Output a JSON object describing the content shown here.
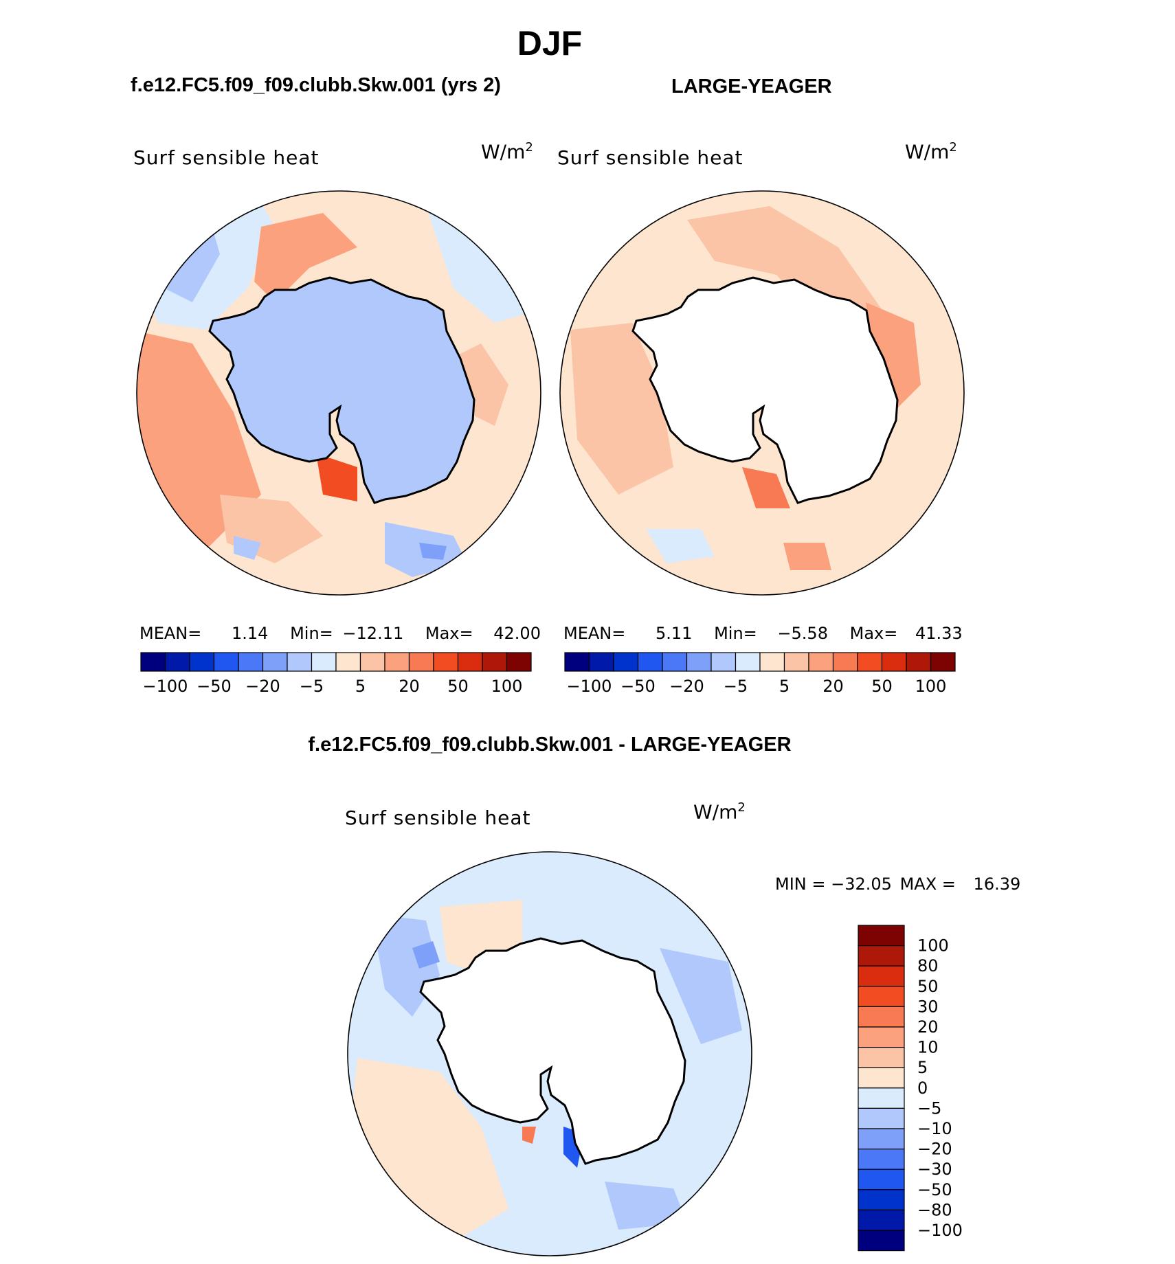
{
  "season_title": "DJF",
  "panels": {
    "left": {
      "case_title": "f.e12.FC5.f09_f09.clubb.Skw.001 (yrs 2)",
      "variable_label": "Surf sensible heat",
      "units_base": "W/m",
      "units_exp": "2",
      "stats": {
        "mean_label": "MEAN=",
        "mean": "1.14",
        "min_label": "Min=",
        "min": "−12.11",
        "max_label": "Max=",
        "max": "42.00"
      }
    },
    "right": {
      "case_title": "LARGE-YEAGER",
      "variable_label": "Surf sensible heat",
      "units_base": "W/m",
      "units_exp": "2",
      "stats": {
        "mean_label": "MEAN=",
        "mean": "5.11",
        "min_label": "Min=",
        "min": "−5.58",
        "max_label": "Max=",
        "max": "41.33"
      }
    },
    "diff": {
      "case_title": "f.e12.FC5.f09_f09.clubb.Skw.001 - LARGE-YEAGER",
      "variable_label": "Surf sensible heat",
      "units_base": "W/m",
      "units_exp": "2",
      "minmax": {
        "min_label": "MIN =",
        "min": "−32.05",
        "max_label": "MAX =",
        "max": "16.39"
      }
    }
  },
  "colorbar_horizontal": {
    "colors": [
      "#00007f",
      "#0019a8",
      "#0033cc",
      "#1f57f0",
      "#4a78f7",
      "#7ea0f9",
      "#b0c8fb",
      "#d9ebfc",
      "#fde5cf",
      "#fcc4a6",
      "#fba17e",
      "#f87a52",
      "#f24d22",
      "#da2d0f",
      "#ad1808",
      "#7d0303"
    ],
    "tick_labels": [
      "−100",
      "−50",
      "−20",
      "−5",
      "5",
      "20",
      "50",
      "100"
    ]
  },
  "colorbar_vertical": {
    "colors_top_to_bottom": [
      "#7d0303",
      "#ad1808",
      "#da2d0f",
      "#f24d22",
      "#f87a52",
      "#fba17e",
      "#fcc4a6",
      "#fde5cf",
      "#d9ebfc",
      "#b0c8fb",
      "#7ea0f9",
      "#4a78f7",
      "#1f57f0",
      "#0033cc",
      "#0019a8",
      "#00007f"
    ],
    "tick_labels": [
      "100",
      "80",
      "50",
      "30",
      "20",
      "10",
      "5",
      "0",
      "−5",
      "−10",
      "−20",
      "−30",
      "−50",
      "−80",
      "−100"
    ]
  }
}
